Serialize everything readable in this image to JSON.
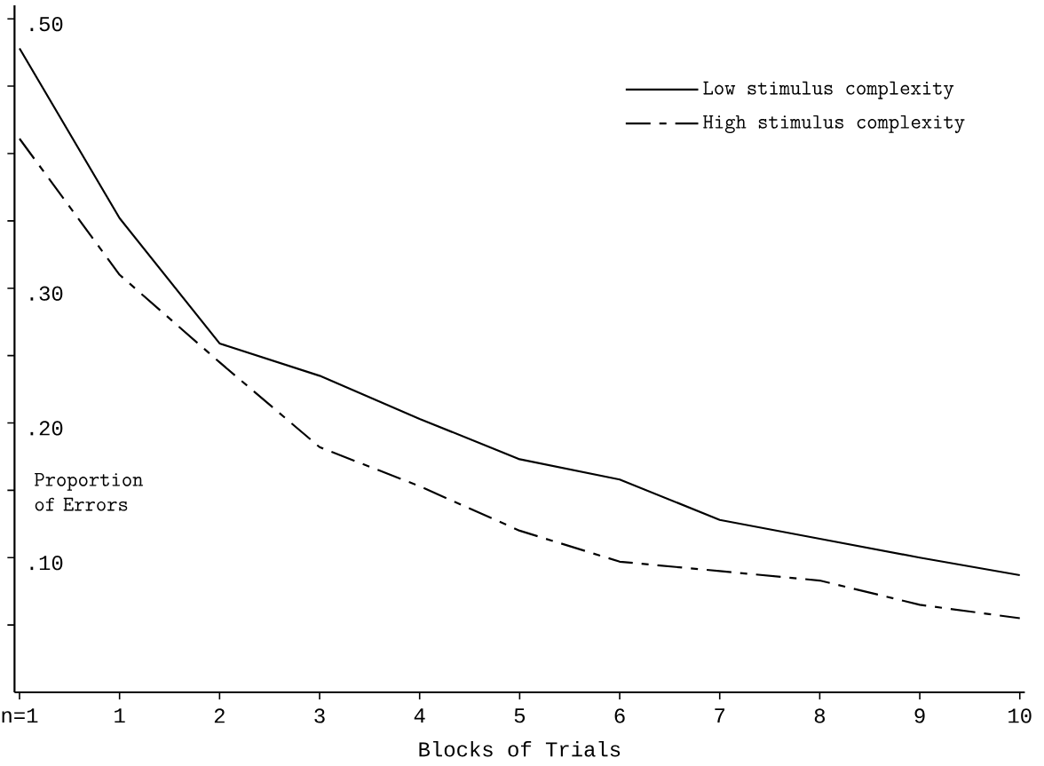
{
  "chart_data": {
    "type": "line",
    "xlabel": "Blocks of Trials",
    "ylabel": "Proportion of Errors",
    "categories": [
      "n=1",
      "1",
      "2",
      "3",
      "4",
      "5",
      "6",
      "7",
      "8",
      "9",
      "10"
    ],
    "series": [
      {
        "name": "Low stimulus complexity",
        "color": "#000000",
        "line_style": "solid",
        "values": [
          0.478,
          0.352,
          0.259,
          0.235,
          0.203,
          0.173,
          0.158,
          0.128,
          0.114,
          0.1,
          0.087
        ]
      },
      {
        "name": "High stimulus complexity",
        "color": "#000000",
        "line_style": "dashed",
        "values": [
          0.411,
          0.31,
          0.245,
          0.182,
          0.153,
          0.12,
          0.097,
          0.09,
          0.083,
          0.065,
          0.055
        ]
      }
    ],
    "ylim": [
      0,
      0.51
    ],
    "yticks": [
      {
        "value": 0.05,
        "label": null
      },
      {
        "value": 0.1,
        "label": ".10"
      },
      {
        "value": 0.15,
        "label": null
      },
      {
        "value": 0.2,
        "label": ".20"
      },
      {
        "value": 0.25,
        "label": null
      },
      {
        "value": 0.3,
        "label": ".30"
      },
      {
        "value": 0.35,
        "label": null
      },
      {
        "value": 0.4,
        "label": null
      },
      {
        "value": 0.45,
        "label": null
      },
      {
        "value": 0.5,
        "label": ".50"
      }
    ],
    "legend": "top right"
  }
}
